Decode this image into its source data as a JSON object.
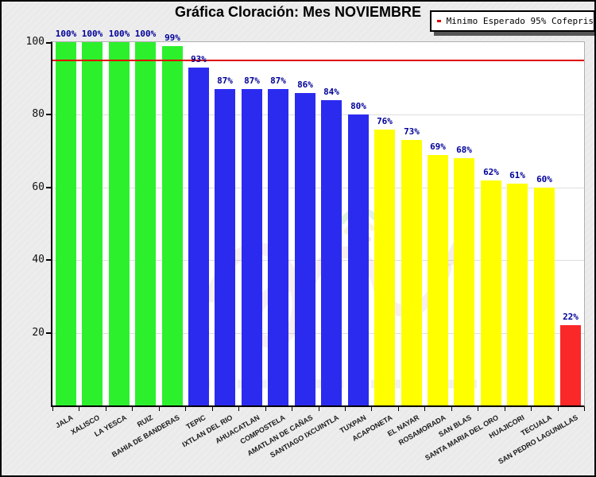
{
  "window": {
    "title": "Gráfica Cloración: Mes NOVIEMBRE",
    "background": "#ECECEC"
  },
  "legend": {
    "label": "Minimo Esperado 95% Cofepris",
    "line_color": "#E00000",
    "position": "top-right"
  },
  "chart_data": {
    "type": "bar",
    "title": "Gráfica Cloración: Mes NOVIEMBRE",
    "categories": [
      "JALA",
      "XALISCO",
      "LA YESCA",
      "RUIZ",
      "BAHIA DE BANDERAS",
      "TEPIC",
      "IXTLAN DEL RIO",
      "AHUACATLAN",
      "COMPOSTELA",
      "AMATLAN DE CAÑAS",
      "SANTIAGO IXCUINTLA",
      "TUXPAN",
      "ACAPONETA",
      "EL NAYAR",
      "ROSAMORADA",
      "SAN BLAS",
      "SANTA MARIA DEL ORO",
      "HUAJICORI",
      "TECUALA",
      "SAN PEDRO LAGUNILLAS"
    ],
    "values": [
      100,
      100,
      100,
      100,
      99,
      93,
      87,
      87,
      87,
      86,
      84,
      80,
      76,
      73,
      69,
      68,
      62,
      61,
      60,
      22
    ],
    "value_labels": [
      "100%",
      "100%",
      "100%",
      "100%",
      "99%",
      "93%",
      "87%",
      "87%",
      "87%",
      "86%",
      "84%",
      "80%",
      "76%",
      "73%",
      "69%",
      "68%",
      "62%",
      "61%",
      "60%",
      "22%"
    ],
    "bar_colors": [
      "#2DF02D",
      "#2DF02D",
      "#2DF02D",
      "#2DF02D",
      "#2DF02D",
      "#2B2BF0",
      "#2B2BF0",
      "#2B2BF0",
      "#2B2BF0",
      "#2B2BF0",
      "#2B2BF0",
      "#2B2BF0",
      "#FFFF00",
      "#FFFF00",
      "#FFFF00",
      "#FFFF00",
      "#FFFF00",
      "#FFFF00",
      "#FFFF00",
      "#FA2828"
    ],
    "color_groups": {
      "compliant_green": "#2DF02D",
      "mid_blue": "#2B2BF0",
      "low_yellow": "#FFFF00",
      "critical_red": "#FA2828"
    },
    "xlabel": "",
    "ylabel": "",
    "ylim": [
      0,
      100
    ],
    "yticks": [
      100,
      80,
      60,
      40,
      20
    ],
    "grid": "horizontal-light",
    "legend_position": "top-right",
    "value_label_color": "#000099",
    "threshold": {
      "value": 95,
      "color": "#E00000",
      "label": "Minimo Esperado 95% Cofepris"
    }
  }
}
